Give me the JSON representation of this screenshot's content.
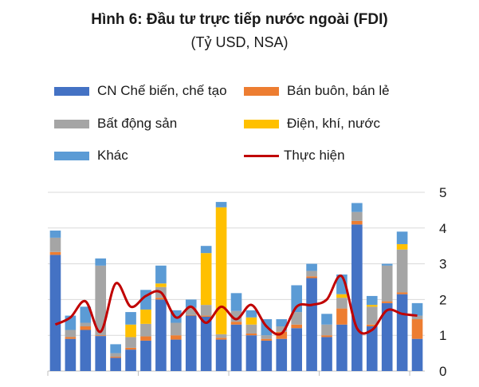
{
  "chart_data": {
    "type": "bar",
    "title": "Hình 6: Đầu tư trực tiếp nước ngoài (FDI)",
    "subtitle": "(Tỷ USD, NSA)",
    "ylim": [
      0,
      5
    ],
    "yticks": [
      "0",
      "1",
      "2",
      "3",
      "4",
      "5"
    ],
    "grid": true,
    "legend_position": "top",
    "stacked": true,
    "series": [
      {
        "name": "CN Chế biến, chế tạo",
        "color": "#4472C4",
        "values": [
          3.25,
          0.9,
          1.15,
          0.98,
          0.37,
          0.6,
          0.85,
          2.0,
          0.88,
          1.55,
          1.52,
          0.88,
          1.3,
          1.0,
          0.85,
          0.9,
          1.2,
          2.6,
          0.95,
          1.3,
          4.1,
          1.25,
          1.9,
          2.15,
          0.9
        ]
      },
      {
        "name": "Bán buôn, bán lẻ",
        "color": "#ED7D31",
        "values": [
          0.08,
          0.05,
          0.1,
          0.02,
          0.03,
          0.05,
          0.12,
          0.05,
          0.12,
          0.02,
          0.03,
          0.05,
          0.08,
          0.05,
          0.05,
          0.2,
          0.1,
          0.05,
          0.05,
          0.45,
          0.1,
          0.05,
          0.05,
          0.05,
          0.55
        ]
      },
      {
        "name": "Bất động sản",
        "color": "#A5A5A5",
        "values": [
          0.4,
          0.2,
          0.1,
          1.95,
          0.1,
          0.3,
          0.35,
          0.3,
          0.35,
          0.2,
          0.3,
          0.1,
          0.3,
          0.25,
          0.1,
          0.15,
          0.35,
          0.15,
          0.3,
          0.3,
          0.25,
          0.5,
          1.0,
          1.2,
          0.1
        ]
      },
      {
        "name": "Điện, khí, nước",
        "color": "#FFC000",
        "values": [
          0,
          0,
          0,
          0,
          0,
          0.35,
          0.4,
          0.1,
          0,
          0,
          1.45,
          3.55,
          0,
          0.2,
          0,
          0,
          0,
          0,
          0,
          0.1,
          0,
          0.05,
          0,
          0.15,
          0
        ]
      },
      {
        "name": "Khác",
        "color": "#5B9BD5",
        "values": [
          0.2,
          0.4,
          0.45,
          0.2,
          0.25,
          0.35,
          0.55,
          0.5,
          0.35,
          0.23,
          0.2,
          0.15,
          0.5,
          0.2,
          0.45,
          0.2,
          0.75,
          0.2,
          0.3,
          0.55,
          0.25,
          0.25,
          0.05,
          0.35,
          0.35
        ]
      }
    ],
    "line": {
      "name": "Thực hiện",
      "color": "#C00000",
      "values": [
        1.3,
        1.5,
        1.95,
        1.1,
        2.45,
        1.8,
        2.1,
        2.2,
        1.5,
        1.8,
        1.35,
        1.8,
        1.45,
        1.85,
        1.25,
        1.05,
        1.8,
        1.85,
        2.0,
        2.65,
        1.2,
        1.15,
        1.7,
        1.6,
        1.55
      ]
    }
  }
}
